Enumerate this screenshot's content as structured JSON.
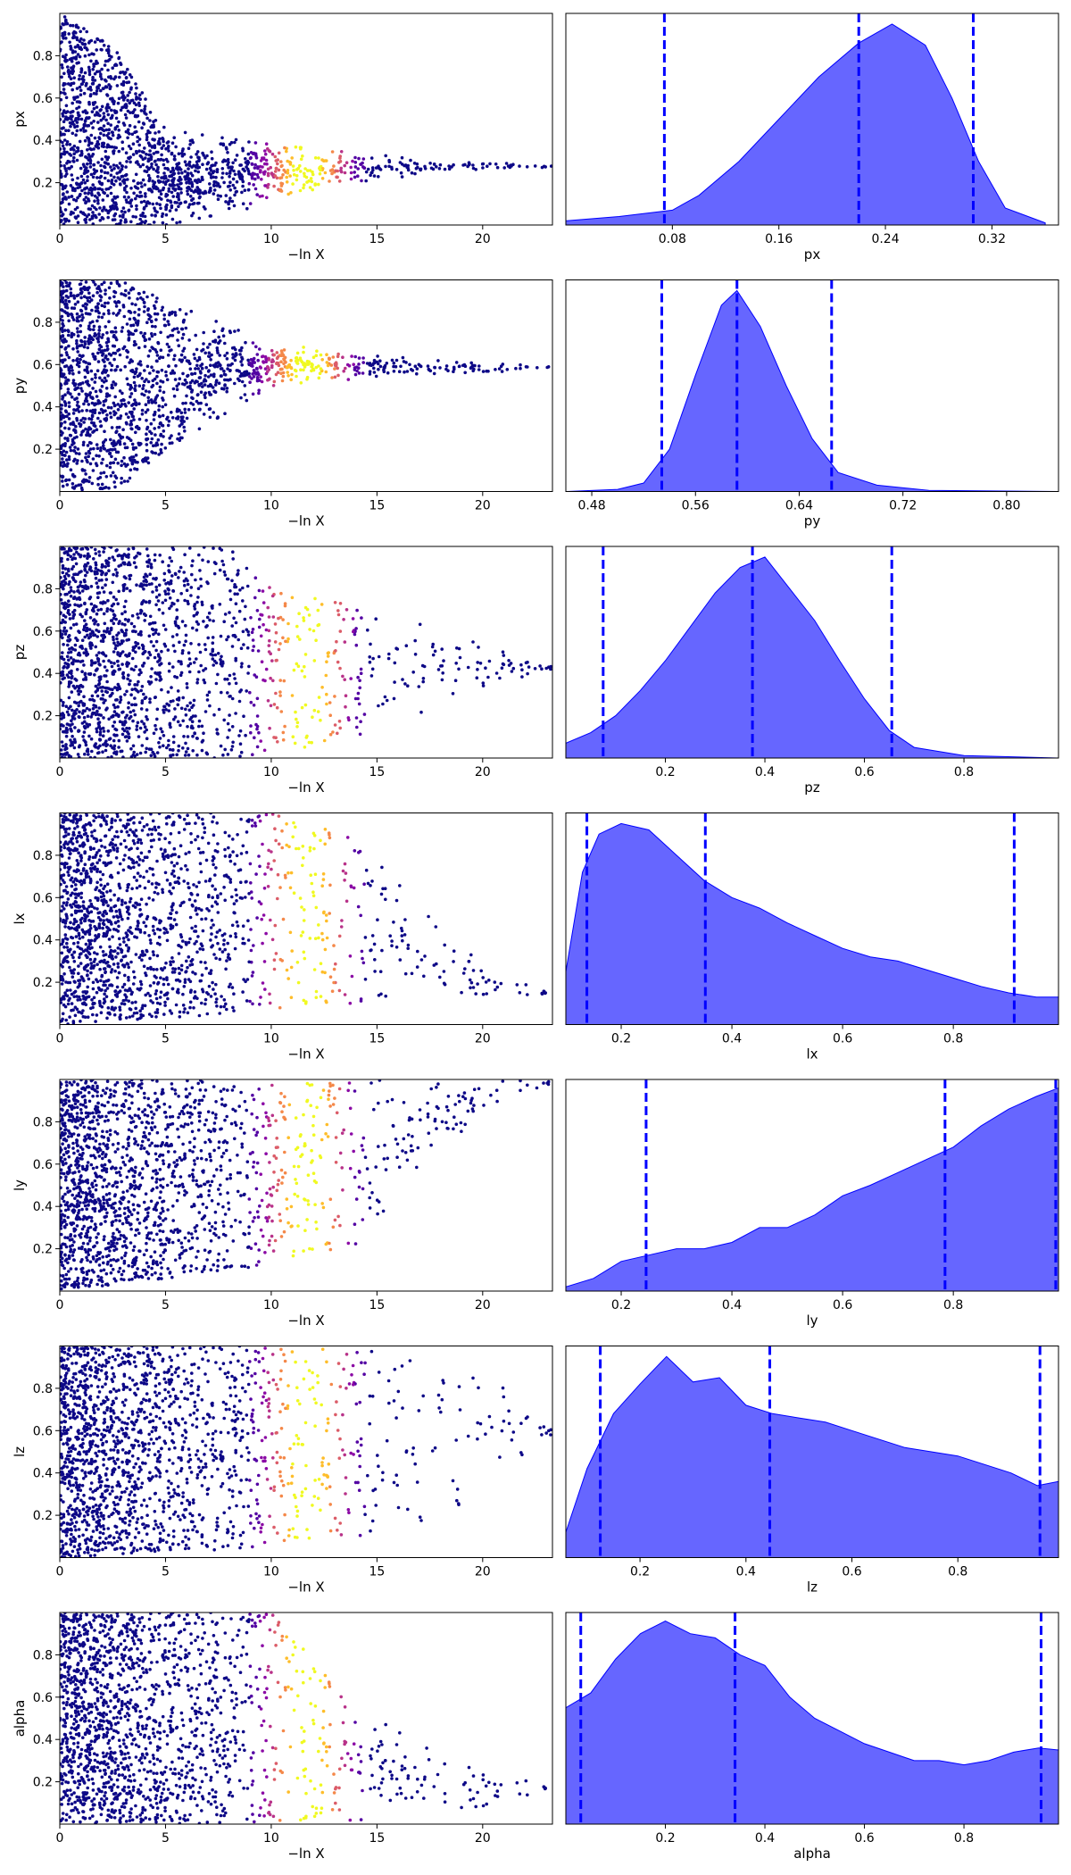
{
  "figure": {
    "background": "#ffffff"
  },
  "colors": {
    "kde_fill": "#0000ff",
    "kde_fill_opacity": 0.6,
    "quantile_line": "#0000ff",
    "point_colormap": [
      "#0d0887",
      "#5302a3",
      "#8b0aa5",
      "#b83289",
      "#db5c68",
      "#f48849",
      "#febd2a",
      "#f0f921"
    ]
  },
  "chart_data": [
    {
      "panel": "trace",
      "type": "scatter",
      "ylabel": "px",
      "xlabel": "−ln X",
      "xlim": [
        0,
        23.3
      ],
      "ylim": [
        0,
        1
      ],
      "xticks": [
        0,
        5,
        10,
        15,
        20
      ],
      "yticks": [
        0.2,
        0.4,
        0.6,
        0.8
      ],
      "color_by": "posterior weight, peak at −ln X ≈ 11.7",
      "envelope": [
        {
          "x": 0,
          "lo": 0.0,
          "hi": 1.0
        },
        {
          "x": 2.5,
          "lo": 0.0,
          "hi": 0.85
        },
        {
          "x": 5,
          "lo": 0.0,
          "hi": 0.45
        },
        {
          "x": 10,
          "lo": 0.1,
          "hi": 0.38
        },
        {
          "x": 15,
          "lo": 0.2,
          "hi": 0.33
        },
        {
          "x": 20,
          "lo": 0.26,
          "hi": 0.3
        },
        {
          "x": 23,
          "lo": 0.27,
          "hi": 0.28
        }
      ]
    },
    {
      "panel": "marginal",
      "type": "area",
      "xlabel": "px",
      "xlim": [
        0.0,
        0.37
      ],
      "xticks": [
        0.08,
        0.16,
        0.24,
        0.32
      ],
      "quantiles": [
        0.074,
        0.22,
        0.306
      ],
      "density": [
        {
          "x": 0.0,
          "y": 0.02
        },
        {
          "x": 0.04,
          "y": 0.04
        },
        {
          "x": 0.08,
          "y": 0.07
        },
        {
          "x": 0.1,
          "y": 0.14
        },
        {
          "x": 0.13,
          "y": 0.3
        },
        {
          "x": 0.16,
          "y": 0.5
        },
        {
          "x": 0.19,
          "y": 0.7
        },
        {
          "x": 0.22,
          "y": 0.86
        },
        {
          "x": 0.245,
          "y": 0.95
        },
        {
          "x": 0.27,
          "y": 0.85
        },
        {
          "x": 0.29,
          "y": 0.6
        },
        {
          "x": 0.31,
          "y": 0.3
        },
        {
          "x": 0.33,
          "y": 0.08
        },
        {
          "x": 0.36,
          "y": 0.01
        }
      ]
    },
    {
      "panel": "trace",
      "type": "scatter",
      "ylabel": "py",
      "xlabel": "−ln X",
      "xlim": [
        0,
        23.3
      ],
      "ylim": [
        0,
        1
      ],
      "xticks": [
        0,
        5,
        10,
        15,
        20
      ],
      "yticks": [
        0.2,
        0.4,
        0.6,
        0.8
      ],
      "color_by": "posterior weight, peak at −ln X ≈ 11.7",
      "envelope": [
        {
          "x": 0,
          "lo": 0.0,
          "hi": 1.0
        },
        {
          "x": 3,
          "lo": 0.02,
          "hi": 1.0
        },
        {
          "x": 5,
          "lo": 0.2,
          "hi": 0.9
        },
        {
          "x": 10,
          "lo": 0.5,
          "hi": 0.7
        },
        {
          "x": 15,
          "lo": 0.54,
          "hi": 0.64
        },
        {
          "x": 20,
          "lo": 0.56,
          "hi": 0.61
        },
        {
          "x": 23,
          "lo": 0.58,
          "hi": 0.59
        }
      ]
    },
    {
      "panel": "marginal",
      "type": "area",
      "xlabel": "py",
      "xlim": [
        0.46,
        0.84
      ],
      "xticks": [
        0.48,
        0.56,
        0.64,
        0.72,
        0.8
      ],
      "quantiles": [
        0.534,
        0.592,
        0.665
      ],
      "density": [
        {
          "x": 0.46,
          "y": 0.0
        },
        {
          "x": 0.5,
          "y": 0.01
        },
        {
          "x": 0.52,
          "y": 0.04
        },
        {
          "x": 0.54,
          "y": 0.2
        },
        {
          "x": 0.56,
          "y": 0.55
        },
        {
          "x": 0.58,
          "y": 0.88
        },
        {
          "x": 0.592,
          "y": 0.95
        },
        {
          "x": 0.61,
          "y": 0.78
        },
        {
          "x": 0.63,
          "y": 0.5
        },
        {
          "x": 0.65,
          "y": 0.25
        },
        {
          "x": 0.67,
          "y": 0.09
        },
        {
          "x": 0.7,
          "y": 0.03
        },
        {
          "x": 0.74,
          "y": 0.005
        },
        {
          "x": 0.84,
          "y": 0.0
        }
      ]
    },
    {
      "panel": "trace",
      "type": "scatter",
      "ylabel": "pz",
      "xlabel": "−ln X",
      "xlim": [
        0,
        23.3
      ],
      "ylim": [
        0,
        1
      ],
      "xticks": [
        0,
        5,
        10,
        15,
        20
      ],
      "yticks": [
        0.2,
        0.4,
        0.6,
        0.8
      ],
      "color_by": "posterior weight, peak at −ln X ≈ 11.7",
      "envelope": [
        {
          "x": 0,
          "lo": 0.0,
          "hi": 1.0
        },
        {
          "x": 8,
          "lo": 0.0,
          "hi": 1.0
        },
        {
          "x": 10,
          "lo": 0.02,
          "hi": 0.8
        },
        {
          "x": 15,
          "lo": 0.12,
          "hi": 0.7
        },
        {
          "x": 18,
          "lo": 0.25,
          "hi": 0.6
        },
        {
          "x": 21,
          "lo": 0.35,
          "hi": 0.5
        },
        {
          "x": 23,
          "lo": 0.42,
          "hi": 0.44
        }
      ]
    },
    {
      "panel": "marginal",
      "type": "area",
      "xlabel": "pz",
      "xlim": [
        0.0,
        0.99
      ],
      "xticks": [
        0.2,
        0.4,
        0.6,
        0.8
      ],
      "quantiles": [
        0.075,
        0.375,
        0.655
      ],
      "density": [
        {
          "x": 0.0,
          "y": 0.07
        },
        {
          "x": 0.05,
          "y": 0.12
        },
        {
          "x": 0.1,
          "y": 0.2
        },
        {
          "x": 0.15,
          "y": 0.32
        },
        {
          "x": 0.2,
          "y": 0.46
        },
        {
          "x": 0.25,
          "y": 0.62
        },
        {
          "x": 0.3,
          "y": 0.78
        },
        {
          "x": 0.35,
          "y": 0.9
        },
        {
          "x": 0.4,
          "y": 0.95
        },
        {
          "x": 0.45,
          "y": 0.8
        },
        {
          "x": 0.5,
          "y": 0.65
        },
        {
          "x": 0.55,
          "y": 0.46
        },
        {
          "x": 0.6,
          "y": 0.28
        },
        {
          "x": 0.65,
          "y": 0.13
        },
        {
          "x": 0.7,
          "y": 0.05
        },
        {
          "x": 0.8,
          "y": 0.012
        },
        {
          "x": 0.99,
          "y": 0.0
        }
      ]
    },
    {
      "panel": "trace",
      "type": "scatter",
      "ylabel": "lx",
      "xlabel": "−ln X",
      "xlim": [
        0,
        23.3
      ],
      "ylim": [
        0,
        1
      ],
      "xticks": [
        0,
        5,
        10,
        15,
        20
      ],
      "yticks": [
        0.2,
        0.4,
        0.6,
        0.8
      ],
      "color_by": "posterior weight, peak at −ln X ≈ 11.7",
      "envelope": [
        {
          "x": 0,
          "lo": 0.0,
          "hi": 1.0
        },
        {
          "x": 10,
          "lo": 0.06,
          "hi": 1.0
        },
        {
          "x": 14,
          "lo": 0.1,
          "hi": 0.9
        },
        {
          "x": 17,
          "lo": 0.12,
          "hi": 0.55
        },
        {
          "x": 20,
          "lo": 0.12,
          "hi": 0.28
        },
        {
          "x": 23,
          "lo": 0.14,
          "hi": 0.16
        }
      ]
    },
    {
      "panel": "marginal",
      "type": "area",
      "xlabel": "lx",
      "xlim": [
        0.1,
        0.99
      ],
      "xticks": [
        0.2,
        0.4,
        0.6,
        0.8
      ],
      "quantiles": [
        0.138,
        0.352,
        0.91
      ],
      "density": [
        {
          "x": 0.1,
          "y": 0.25
        },
        {
          "x": 0.13,
          "y": 0.72
        },
        {
          "x": 0.16,
          "y": 0.9
        },
        {
          "x": 0.2,
          "y": 0.95
        },
        {
          "x": 0.25,
          "y": 0.92
        },
        {
          "x": 0.3,
          "y": 0.8
        },
        {
          "x": 0.35,
          "y": 0.68
        },
        {
          "x": 0.4,
          "y": 0.6
        },
        {
          "x": 0.45,
          "y": 0.55
        },
        {
          "x": 0.5,
          "y": 0.48
        },
        {
          "x": 0.55,
          "y": 0.42
        },
        {
          "x": 0.6,
          "y": 0.36
        },
        {
          "x": 0.65,
          "y": 0.32
        },
        {
          "x": 0.7,
          "y": 0.3
        },
        {
          "x": 0.75,
          "y": 0.26
        },
        {
          "x": 0.8,
          "y": 0.22
        },
        {
          "x": 0.85,
          "y": 0.18
        },
        {
          "x": 0.9,
          "y": 0.15
        },
        {
          "x": 0.95,
          "y": 0.13
        },
        {
          "x": 0.99,
          "y": 0.13
        }
      ]
    },
    {
      "panel": "trace",
      "type": "scatter",
      "ylabel": "ly",
      "xlabel": "−ln X",
      "xlim": [
        0,
        23.3
      ],
      "ylim": [
        0,
        1
      ],
      "xticks": [
        0,
        5,
        10,
        15,
        20
      ],
      "yticks": [
        0.2,
        0.4,
        0.6,
        0.8
      ],
      "color_by": "posterior weight, peak at −ln X ≈ 11.7",
      "envelope": [
        {
          "x": 0,
          "lo": 0.0,
          "hi": 1.0
        },
        {
          "x": 10,
          "lo": 0.12,
          "hi": 1.0
        },
        {
          "x": 14,
          "lo": 0.22,
          "hi": 1.0
        },
        {
          "x": 17,
          "lo": 0.55,
          "hi": 1.0
        },
        {
          "x": 20,
          "lo": 0.85,
          "hi": 1.0
        },
        {
          "x": 23,
          "lo": 0.97,
          "hi": 0.99
        }
      ]
    },
    {
      "panel": "marginal",
      "type": "area",
      "xlabel": "ly",
      "xlim": [
        0.1,
        0.99
      ],
      "xticks": [
        0.2,
        0.4,
        0.6,
        0.8
      ],
      "quantiles": [
        0.245,
        0.785,
        0.985
      ],
      "density": [
        {
          "x": 0.1,
          "y": 0.02
        },
        {
          "x": 0.15,
          "y": 0.06
        },
        {
          "x": 0.2,
          "y": 0.14
        },
        {
          "x": 0.25,
          "y": 0.17
        },
        {
          "x": 0.3,
          "y": 0.2
        },
        {
          "x": 0.35,
          "y": 0.2
        },
        {
          "x": 0.4,
          "y": 0.23
        },
        {
          "x": 0.45,
          "y": 0.3
        },
        {
          "x": 0.5,
          "y": 0.3
        },
        {
          "x": 0.55,
          "y": 0.36
        },
        {
          "x": 0.6,
          "y": 0.45
        },
        {
          "x": 0.65,
          "y": 0.5
        },
        {
          "x": 0.7,
          "y": 0.56
        },
        {
          "x": 0.75,
          "y": 0.62
        },
        {
          "x": 0.8,
          "y": 0.68
        },
        {
          "x": 0.85,
          "y": 0.78
        },
        {
          "x": 0.9,
          "y": 0.86
        },
        {
          "x": 0.95,
          "y": 0.92
        },
        {
          "x": 0.99,
          "y": 0.96
        }
      ]
    },
    {
      "panel": "trace",
      "type": "scatter",
      "ylabel": "lz",
      "xlabel": "−ln X",
      "xlim": [
        0,
        23.3
      ],
      "ylim": [
        0,
        1
      ],
      "xticks": [
        0,
        5,
        10,
        15,
        20
      ],
      "yticks": [
        0.2,
        0.4,
        0.6,
        0.8
      ],
      "color_by": "posterior weight, peak at −ln X ≈ 11.7",
      "envelope": [
        {
          "x": 0,
          "lo": 0.0,
          "hi": 1.0
        },
        {
          "x": 10,
          "lo": 0.05,
          "hi": 1.0
        },
        {
          "x": 15,
          "lo": 0.1,
          "hi": 1.0
        },
        {
          "x": 18,
          "lo": 0.18,
          "hi": 0.9
        },
        {
          "x": 21,
          "lo": 0.4,
          "hi": 0.8
        },
        {
          "x": 23,
          "lo": 0.58,
          "hi": 0.62
        }
      ]
    },
    {
      "panel": "marginal",
      "type": "area",
      "xlabel": "lz",
      "xlim": [
        0.06,
        0.99
      ],
      "xticks": [
        0.2,
        0.4,
        0.6,
        0.8
      ],
      "quantiles": [
        0.125,
        0.445,
        0.955
      ],
      "density": [
        {
          "x": 0.06,
          "y": 0.12
        },
        {
          "x": 0.1,
          "y": 0.42
        },
        {
          "x": 0.15,
          "y": 0.68
        },
        {
          "x": 0.2,
          "y": 0.82
        },
        {
          "x": 0.25,
          "y": 0.95
        },
        {
          "x": 0.3,
          "y": 0.83
        },
        {
          "x": 0.35,
          "y": 0.85
        },
        {
          "x": 0.4,
          "y": 0.72
        },
        {
          "x": 0.45,
          "y": 0.68
        },
        {
          "x": 0.5,
          "y": 0.66
        },
        {
          "x": 0.55,
          "y": 0.64
        },
        {
          "x": 0.6,
          "y": 0.6
        },
        {
          "x": 0.65,
          "y": 0.56
        },
        {
          "x": 0.7,
          "y": 0.52
        },
        {
          "x": 0.75,
          "y": 0.5
        },
        {
          "x": 0.8,
          "y": 0.48
        },
        {
          "x": 0.85,
          "y": 0.44
        },
        {
          "x": 0.9,
          "y": 0.4
        },
        {
          "x": 0.95,
          "y": 0.34
        },
        {
          "x": 0.99,
          "y": 0.36
        }
      ]
    },
    {
      "panel": "trace",
      "type": "scatter",
      "ylabel": "alpha",
      "xlabel": "−ln X",
      "xlim": [
        0,
        23.3
      ],
      "ylim": [
        0,
        1
      ],
      "xticks": [
        0,
        5,
        10,
        15,
        20
      ],
      "yticks": [
        0.2,
        0.4,
        0.6,
        0.8
      ],
      "color_by": "posterior weight, peak at −ln X ≈ 11.7",
      "envelope": [
        {
          "x": 0,
          "lo": 0.0,
          "hi": 1.0
        },
        {
          "x": 10,
          "lo": 0.0,
          "hi": 1.0
        },
        {
          "x": 14,
          "lo": 0.02,
          "hi": 0.55
        },
        {
          "x": 17,
          "lo": 0.03,
          "hi": 0.38
        },
        {
          "x": 20,
          "lo": 0.05,
          "hi": 0.3
        },
        {
          "x": 23,
          "lo": 0.16,
          "hi": 0.18
        }
      ]
    },
    {
      "panel": "marginal",
      "type": "area",
      "xlabel": "alpha",
      "xlim": [
        0.0,
        0.99
      ],
      "xticks": [
        0.2,
        0.4,
        0.6,
        0.8
      ],
      "quantiles": [
        0.03,
        0.34,
        0.955
      ],
      "density": [
        {
          "x": 0.0,
          "y": 0.55
        },
        {
          "x": 0.05,
          "y": 0.62
        },
        {
          "x": 0.1,
          "y": 0.78
        },
        {
          "x": 0.15,
          "y": 0.9
        },
        {
          "x": 0.2,
          "y": 0.96
        },
        {
          "x": 0.25,
          "y": 0.9
        },
        {
          "x": 0.3,
          "y": 0.88
        },
        {
          "x": 0.35,
          "y": 0.8
        },
        {
          "x": 0.4,
          "y": 0.75
        },
        {
          "x": 0.45,
          "y": 0.6
        },
        {
          "x": 0.5,
          "y": 0.5
        },
        {
          "x": 0.55,
          "y": 0.44
        },
        {
          "x": 0.6,
          "y": 0.38
        },
        {
          "x": 0.65,
          "y": 0.34
        },
        {
          "x": 0.7,
          "y": 0.3
        },
        {
          "x": 0.75,
          "y": 0.3
        },
        {
          "x": 0.8,
          "y": 0.28
        },
        {
          "x": 0.85,
          "y": 0.3
        },
        {
          "x": 0.9,
          "y": 0.34
        },
        {
          "x": 0.95,
          "y": 0.36
        },
        {
          "x": 0.99,
          "y": 0.35
        }
      ]
    }
  ]
}
